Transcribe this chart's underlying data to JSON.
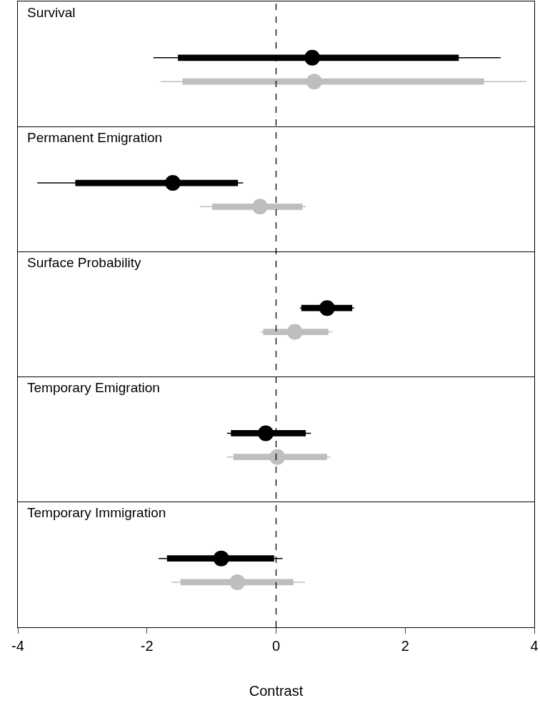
{
  "chart_data": {
    "type": "bar",
    "orientation": "horizontal",
    "categories": [
      "Survival",
      "Permanent Emigration",
      "Surface Probability",
      "Temporary Emigration",
      "Temporary Immigration"
    ],
    "xlim": [
      -4,
      4
    ],
    "xticks": [
      -4,
      -2,
      0,
      2,
      4
    ],
    "xlabel": "Contrast",
    "tick_labels": "x",
    "legend": false,
    "grid": false,
    "ref_lines": [
      {
        "axis": "x",
        "value": 0,
        "color": "#000000",
        "line_style": "dashed"
      }
    ],
    "series": [
      {
        "color": "#000000",
        "base": [
          -1.52,
          -3.11,
          0.39,
          -0.7,
          -1.69
        ],
        "values": [
          4.35,
          2.52,
          0.79,
          1.16,
          1.66
        ]
      },
      {
        "color": "#bebebe",
        "base": [
          -1.45,
          -0.99,
          -0.2,
          -0.66,
          -1.48
        ],
        "values": [
          4.67,
          1.4,
          1.01,
          1.45,
          1.75
        ]
      },
      {
        "type": "scatter",
        "marker": "circle",
        "color": "#000000",
        "values": [
          0.56,
          -1.6,
          0.79,
          -0.16,
          -0.85
        ],
        "errors": [
          [
            -1.9,
            3.48
          ],
          [
            -3.7,
            -0.51
          ],
          [
            0.37,
            1.21
          ],
          [
            -0.76,
            0.54
          ],
          [
            -1.82,
            0.1
          ]
        ]
      },
      {
        "type": "scatter",
        "marker": "circle",
        "color": "#bebebe",
        "values": [
          0.59,
          -0.25,
          0.29,
          0.02,
          -0.6
        ],
        "errors": [
          [
            -1.79,
            3.88
          ],
          [
            -1.18,
            0.46
          ],
          [
            -0.24,
            0.87
          ],
          [
            -0.76,
            0.84
          ],
          [
            -1.62,
            0.45
          ]
        ]
      }
    ]
  }
}
